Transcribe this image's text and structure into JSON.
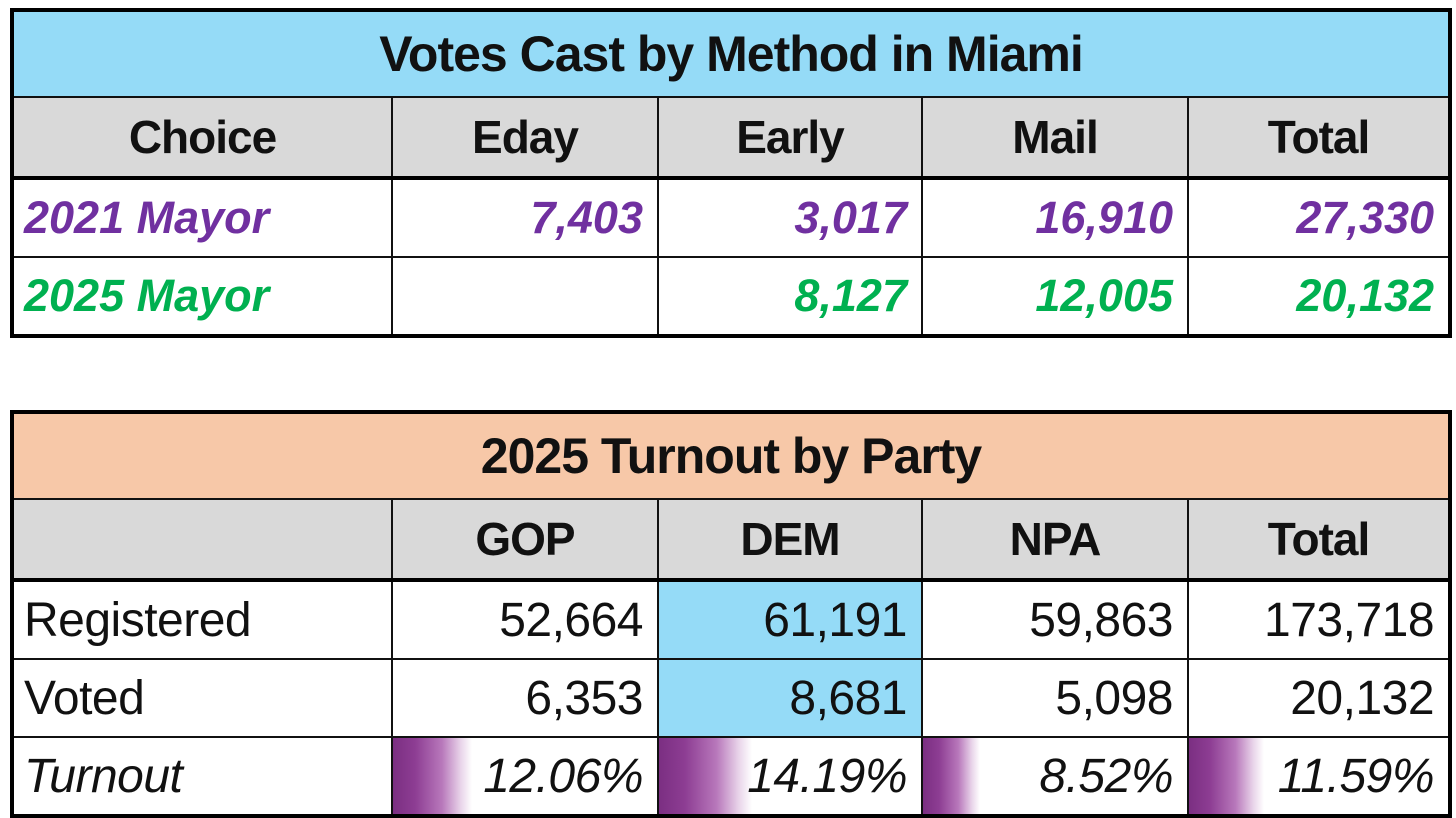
{
  "colors": {
    "blue": "#95dbf7",
    "peach": "#f7c8a8",
    "gray": "#d9d9d9",
    "purple": "#7030a0",
    "green": "#00b050",
    "bar_dark": "#7b2f82"
  },
  "table1": {
    "title": "Votes Cast by Method in Miami",
    "headers": [
      "Choice",
      "Eday",
      "Early",
      "Mail",
      "Total"
    ],
    "rows": [
      {
        "label": "2021 Mayor",
        "values": [
          "7,403",
          "3,017",
          "16,910",
          "27,330"
        ]
      },
      {
        "label": "2025 Mayor",
        "values": [
          "",
          "8,127",
          "12,005",
          "20,132"
        ]
      }
    ]
  },
  "table2": {
    "title": "2025 Turnout by Party",
    "headers": [
      "",
      "GOP",
      "DEM",
      "NPA",
      "Total"
    ],
    "rows": [
      {
        "label": "Registered",
        "values": [
          "52,664",
          "61,191",
          "59,863",
          "173,718"
        ]
      },
      {
        "label": "Voted",
        "values": [
          "6,353",
          "8,681",
          "5,098",
          "20,132"
        ]
      },
      {
        "label": "Turnout",
        "values": [
          "12.06%",
          "14.19%",
          "8.52%",
          "11.59%"
        ]
      }
    ],
    "bars": {
      "gop": 30,
      "dem": 35.5,
      "npa": 21.5,
      "total": 29
    }
  },
  "chart_data": [
    {
      "type": "table",
      "title": "Votes Cast by Method in Miami",
      "columns": [
        "Choice",
        "Eday",
        "Early",
        "Mail",
        "Total"
      ],
      "rows": [
        [
          "2021 Mayor",
          7403,
          3017,
          16910,
          27330
        ],
        [
          "2025 Mayor",
          null,
          8127,
          12005,
          20132
        ]
      ],
      "row_colors": [
        "#7030a0",
        "#00b050"
      ],
      "title_bg": "#95dbf7"
    },
    {
      "type": "table",
      "title": "2025 Turnout by Party",
      "columns": [
        "",
        "GOP",
        "DEM",
        "NPA",
        "Total"
      ],
      "rows": [
        [
          "Registered",
          52664,
          61191,
          59863,
          173718
        ],
        [
          "Voted",
          6353,
          8681,
          5098,
          20132
        ],
        [
          "Turnout",
          "12.06%",
          "14.19%",
          "8.52%",
          "11.59%"
        ]
      ],
      "title_bg": "#f7c8a8",
      "highlighted_cells": "DEM column Registered and Voted values have light-blue fill",
      "turnout_data_bars": {
        "GOP": 12.06,
        "DEM": 14.19,
        "NPA": 8.52,
        "Total": 11.59,
        "bar_scale_max_pct": 40,
        "bar_color": "#7b2f82"
      }
    }
  ]
}
